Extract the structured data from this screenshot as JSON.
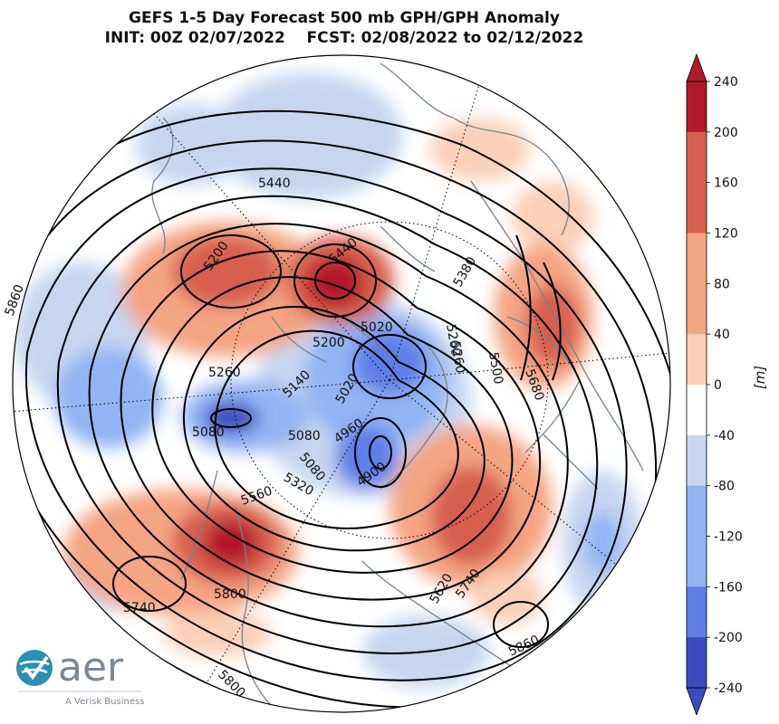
{
  "title": {
    "line1": "GEFS 1-5 Day Forecast 500 mb GPH/GPH Anomaly",
    "line2": "INIT: 00Z 02/07/2022    FCST: 02/08/2022 to 02/12/2022"
  },
  "colorbar": {
    "unit": "[m]",
    "ticks": [
      "240",
      "200",
      "160",
      "120",
      "80",
      "40",
      "0",
      "-40",
      "-80",
      "-120",
      "-160",
      "-200",
      "-240"
    ],
    "colors": {
      "max": "#b2182b",
      "strong_positive": "#d6604d",
      "moderate_positive": "#f4a582",
      "weak_positive": "#f9d0b8",
      "neutral": "#ffffff",
      "weak_negative": "#c6d6ef",
      "moderate_negative": "#92b4f2",
      "strong_negative": "#5e7ee6",
      "min": "#3b4cc0"
    }
  },
  "contour_labels": [
    "5440",
    "5200",
    "5440",
    "5380",
    "5860",
    "5200",
    "5260",
    "5020",
    "5260",
    "5500",
    "5260",
    "5140",
    "5020",
    "5680",
    "5080",
    "5080",
    "4960",
    "5080",
    "4900",
    "5320",
    "5560",
    "5620",
    "5740",
    "5740",
    "5800",
    "5860",
    "5800"
  ],
  "logo": {
    "text": "aer",
    "tagline": "A Verisk Business",
    "icon": "aer-check-globe-icon"
  }
}
